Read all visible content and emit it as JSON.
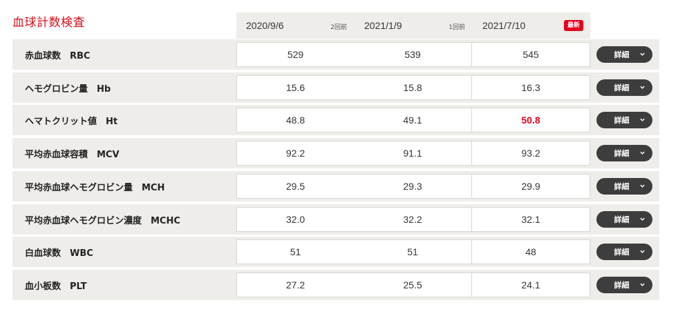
{
  "title": "血球計数検査",
  "header": {
    "columns": [
      {
        "date": "2020/9/6",
        "tag": "2回前",
        "type": "ago"
      },
      {
        "date": "2021/1/9",
        "tag": "1回前",
        "type": "ago"
      },
      {
        "date": "2021/7/10",
        "tag": "最新",
        "type": "new"
      }
    ]
  },
  "detail_label": "詳細",
  "rows": [
    {
      "label": "赤血球数　RBC",
      "values": [
        "529",
        "539",
        "545"
      ],
      "high": [
        false,
        false,
        false
      ]
    },
    {
      "label": "ヘモグロビン量　Hb",
      "values": [
        "15.6",
        "15.8",
        "16.3"
      ],
      "high": [
        false,
        false,
        false
      ]
    },
    {
      "label": "ヘマトクリット値　Ht",
      "values": [
        "48.8",
        "49.1",
        "50.8"
      ],
      "high": [
        false,
        false,
        true
      ]
    },
    {
      "label": "平均赤血球容積　MCV",
      "values": [
        "92.2",
        "91.1",
        "93.2"
      ],
      "high": [
        false,
        false,
        false
      ]
    },
    {
      "label": "平均赤血球ヘモグロビン量　MCH",
      "values": [
        "29.5",
        "29.3",
        "29.9"
      ],
      "high": [
        false,
        false,
        false
      ]
    },
    {
      "label": "平均赤血球ヘモグロビン濃度　MCHC",
      "values": [
        "32.0",
        "32.2",
        "32.1"
      ],
      "high": [
        false,
        false,
        false
      ]
    },
    {
      "label": "白血球数　WBC",
      "values": [
        "51",
        "51",
        "48"
      ],
      "high": [
        false,
        false,
        false
      ]
    },
    {
      "label": "血小板数　PLT",
      "values": [
        "27.2",
        "25.5",
        "24.1"
      ],
      "high": [
        false,
        false,
        false
      ]
    }
  ],
  "colors": {
    "accent": "#d9111c",
    "high_value": "#e3001b",
    "button": "#3d3d3d",
    "row_bg": "#efedea"
  }
}
